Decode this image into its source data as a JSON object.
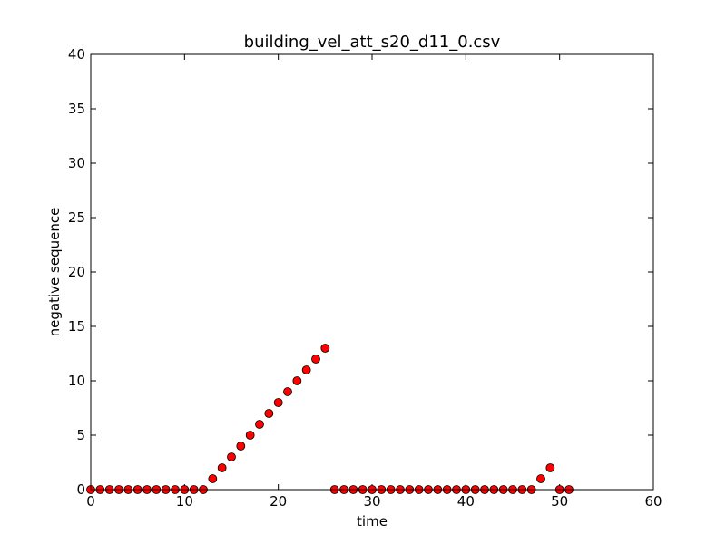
{
  "chart_data": {
    "type": "scatter",
    "title": "building_vel_att_s20_d11_0.csv",
    "xlabel": "time",
    "ylabel": "negative sequence",
    "xlim": [
      0,
      60
    ],
    "ylim": [
      0,
      40
    ],
    "xticks": [
      "0",
      "10",
      "20",
      "30",
      "40",
      "50",
      "60"
    ],
    "yticks": [
      "0",
      "5",
      "10",
      "15",
      "20",
      "25",
      "30",
      "35",
      "40"
    ],
    "grid": false,
    "marker_color": "#ff0000",
    "series": [
      {
        "x": [
          0,
          1,
          2,
          3,
          4,
          5,
          6,
          7,
          8,
          9,
          10,
          11,
          12,
          13,
          14,
          15,
          16,
          17,
          18,
          19,
          20,
          21,
          22,
          23,
          24,
          25,
          26,
          27,
          28,
          29,
          30,
          31,
          32,
          33,
          34,
          35,
          36,
          37,
          38,
          39,
          40,
          41,
          42,
          43,
          44,
          45,
          46,
          47,
          48,
          49,
          50,
          51
        ],
        "y": [
          0,
          0,
          0,
          0,
          0,
          0,
          0,
          0,
          0,
          0,
          0,
          0,
          0,
          1,
          2,
          3,
          4,
          5,
          6,
          7,
          8,
          9,
          10,
          11,
          12,
          13,
          0,
          0,
          0,
          0,
          0,
          0,
          0,
          0,
          0,
          0,
          0,
          0,
          0,
          0,
          0,
          0,
          0,
          0,
          0,
          0,
          0,
          0,
          1,
          2,
          0,
          0
        ]
      }
    ]
  }
}
